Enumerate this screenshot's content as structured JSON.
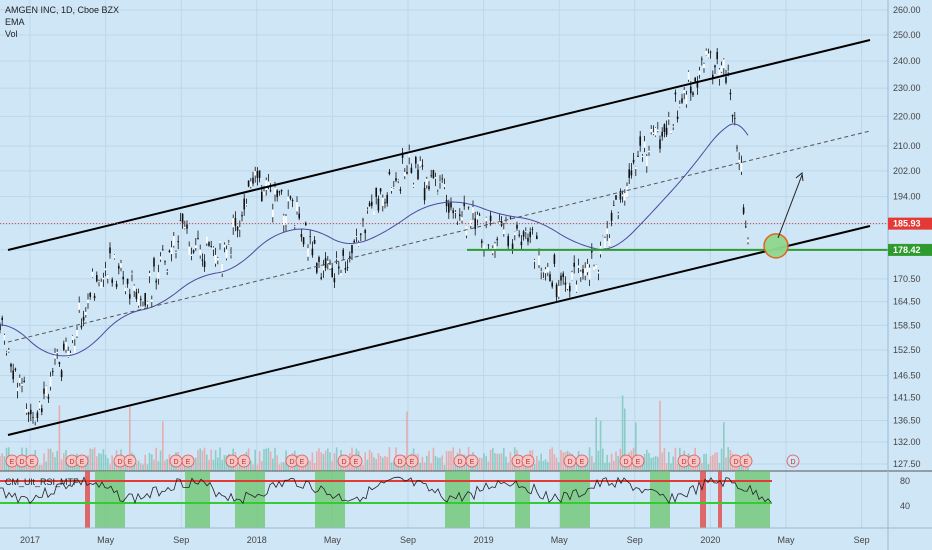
{
  "header": {
    "symbol_line": "AMGEN INC, 1D, Cboe BZX",
    "ema_label": "EMA",
    "vol_label": "Vol"
  },
  "indicator": {
    "label": "CM_Ult_RSI_MTF",
    "levels": [
      "80",
      "40"
    ]
  },
  "price_axis": {
    "ticks": [
      "260.00",
      "250.00",
      "240.00",
      "230.00",
      "220.00",
      "210.00",
      "202.00",
      "194.00",
      "185.93",
      "178.42",
      "170.50",
      "164.50",
      "158.50",
      "152.50",
      "146.50",
      "141.50",
      "136.50",
      "132.00",
      "127.50"
    ]
  },
  "price_tags": {
    "last_price": "185.93",
    "support_level": "178.42",
    "last_color": "#e53935",
    "support_color": "#2e9b2e"
  },
  "time_axis": {
    "labels": [
      "2017",
      "May",
      "Sep",
      "2018",
      "May",
      "Sep",
      "2019",
      "May",
      "Sep",
      "2020",
      "May",
      "Sep"
    ]
  },
  "event_markers": {
    "earnings_letter": "E",
    "dividend_letter": "D"
  },
  "chart_data": {
    "type": "line",
    "title": "AMGEN INC, 1D, Cboe BZX",
    "x": [
      "2016-11",
      "2017-01",
      "2017-03",
      "2017-05",
      "2017-07",
      "2017-09",
      "2017-11",
      "2018-01",
      "2018-03",
      "2018-05",
      "2018-07",
      "2018-09",
      "2018-11",
      "2019-01",
      "2019-03",
      "2019-05",
      "2019-07",
      "2019-09",
      "2019-11",
      "2020-01",
      "2020-02",
      "2020-03"
    ],
    "series": [
      {
        "values": [
          164,
          138,
          152,
          176,
          166,
          183,
          175,
          198,
          188,
          170,
          190,
          203,
          195,
          182,
          185,
          170,
          174,
          205,
          220,
          242,
          234,
          178
        ]
      }
    ],
    "ylim": [
      125,
      262
    ],
    "y_scale": "log",
    "annotations": {
      "horizontal_lines": [
        185.93,
        178.42
      ],
      "channel": "ascending parallel channel",
      "indicator_levels": [
        80,
        40
      ]
    },
    "colors": {
      "background": "#cfe6f7",
      "channel": "#000000",
      "support": "#2e9b2e",
      "last_price": "#e53935"
    }
  }
}
